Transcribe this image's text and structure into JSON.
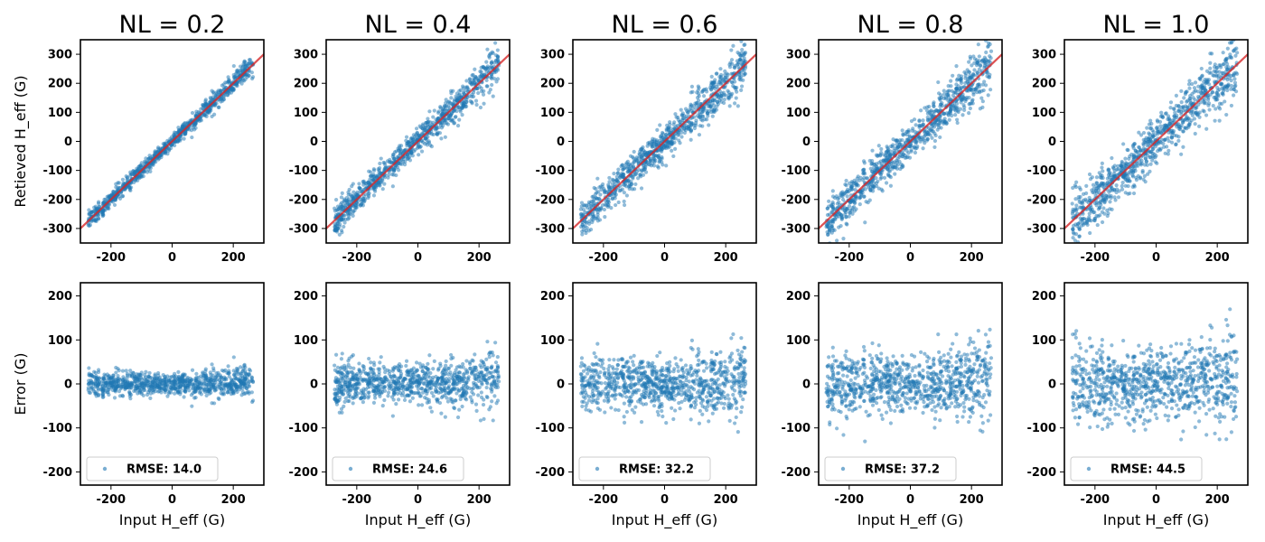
{
  "figure": {
    "accent_colors": {
      "points": "#1f77b4",
      "fit_line": "#d62728"
    }
  },
  "chart_data": [
    {
      "type": "scatter",
      "row": "retrieved",
      "title": "NL = 0.2",
      "xlabel": "",
      "ylabel": "Retieved H_eff (G)",
      "xlim": [
        -300,
        300
      ],
      "ylim": [
        -350,
        350
      ],
      "xticks": [
        -200,
        0,
        200
      ],
      "yticks": [
        -300,
        -200,
        -100,
        0,
        100,
        200,
        300
      ],
      "x_range": [
        -275,
        265
      ],
      "noise_sd": 14.0,
      "seed": 11,
      "n_points": 900,
      "reference_line": {
        "from": [
          -300,
          -300
        ],
        "to": [
          300,
          300
        ]
      }
    },
    {
      "type": "scatter",
      "row": "retrieved",
      "title": "NL = 0.4",
      "xlabel": "",
      "ylabel": "",
      "xlim": [
        -300,
        300
      ],
      "ylim": [
        -350,
        350
      ],
      "xticks": [
        -200,
        0,
        200
      ],
      "yticks": [
        -300,
        -200,
        -100,
        0,
        100,
        200,
        300
      ],
      "x_range": [
        -275,
        265
      ],
      "noise_sd": 24.6,
      "seed": 23,
      "n_points": 900,
      "reference_line": {
        "from": [
          -300,
          -300
        ],
        "to": [
          300,
          300
        ]
      }
    },
    {
      "type": "scatter",
      "row": "retrieved",
      "title": "NL = 0.6",
      "xlabel": "",
      "ylabel": "",
      "xlim": [
        -300,
        300
      ],
      "ylim": [
        -350,
        350
      ],
      "xticks": [
        -200,
        0,
        200
      ],
      "yticks": [
        -300,
        -200,
        -100,
        0,
        100,
        200,
        300
      ],
      "x_range": [
        -275,
        265
      ],
      "noise_sd": 32.2,
      "seed": 37,
      "n_points": 900,
      "reference_line": {
        "from": [
          -300,
          -300
        ],
        "to": [
          300,
          300
        ]
      }
    },
    {
      "type": "scatter",
      "row": "retrieved",
      "title": "NL = 0.8",
      "xlabel": "",
      "ylabel": "",
      "xlim": [
        -300,
        300
      ],
      "ylim": [
        -350,
        350
      ],
      "xticks": [
        -200,
        0,
        200
      ],
      "yticks": [
        -300,
        -200,
        -100,
        0,
        100,
        200,
        300
      ],
      "x_range": [
        -275,
        265
      ],
      "noise_sd": 37.2,
      "seed": 41,
      "n_points": 900,
      "reference_line": {
        "from": [
          -300,
          -300
        ],
        "to": [
          300,
          300
        ]
      }
    },
    {
      "type": "scatter",
      "row": "retrieved",
      "title": "NL = 1.0",
      "xlabel": "",
      "ylabel": "",
      "xlim": [
        -300,
        300
      ],
      "ylim": [
        -350,
        350
      ],
      "xticks": [
        -200,
        0,
        200
      ],
      "yticks": [
        -300,
        -200,
        -100,
        0,
        100,
        200,
        300
      ],
      "x_range": [
        -275,
        265
      ],
      "noise_sd": 44.5,
      "seed": 53,
      "n_points": 900,
      "reference_line": {
        "from": [
          -300,
          -300
        ],
        "to": [
          300,
          300
        ]
      }
    },
    {
      "type": "scatter",
      "row": "error",
      "title": "",
      "xlabel": "Input  H_eff (G)",
      "ylabel": "Error (G)",
      "xlim": [
        -300,
        300
      ],
      "ylim": [
        -230,
        230
      ],
      "xticks": [
        -200,
        0,
        200
      ],
      "yticks": [
        -200,
        -100,
        0,
        100,
        200
      ],
      "x_range": [
        -275,
        265
      ],
      "noise_sd": 14.0,
      "seed": 11,
      "n_points": 900,
      "legend": {
        "label": "RMSE: 14.0",
        "placement": "lower-left"
      }
    },
    {
      "type": "scatter",
      "row": "error",
      "title": "",
      "xlabel": "Input  H_eff (G)",
      "ylabel": "",
      "xlim": [
        -300,
        300
      ],
      "ylim": [
        -230,
        230
      ],
      "xticks": [
        -200,
        0,
        200
      ],
      "yticks": [
        -200,
        -100,
        0,
        100,
        200
      ],
      "x_range": [
        -275,
        265
      ],
      "noise_sd": 24.6,
      "seed": 23,
      "n_points": 900,
      "legend": {
        "label": "RMSE: 24.6",
        "placement": "lower-left"
      }
    },
    {
      "type": "scatter",
      "row": "error",
      "title": "",
      "xlabel": "Input  H_eff (G)",
      "ylabel": "",
      "xlim": [
        -300,
        300
      ],
      "ylim": [
        -230,
        230
      ],
      "xticks": [
        -200,
        0,
        200
      ],
      "yticks": [
        -200,
        -100,
        0,
        100,
        200
      ],
      "x_range": [
        -275,
        265
      ],
      "noise_sd": 32.2,
      "seed": 37,
      "n_points": 900,
      "legend": {
        "label": "RMSE: 32.2",
        "placement": "lower-left"
      }
    },
    {
      "type": "scatter",
      "row": "error",
      "title": "",
      "xlabel": "Input  H_eff (G)",
      "ylabel": "",
      "xlim": [
        -300,
        300
      ],
      "ylim": [
        -230,
        230
      ],
      "xticks": [
        -200,
        0,
        200
      ],
      "yticks": [
        -200,
        -100,
        0,
        100,
        200
      ],
      "x_range": [
        -275,
        265
      ],
      "noise_sd": 37.2,
      "seed": 41,
      "n_points": 900,
      "legend": {
        "label": "RMSE: 37.2",
        "placement": "lower-left"
      }
    },
    {
      "type": "scatter",
      "row": "error",
      "title": "",
      "xlabel": "Input  H_eff (G)",
      "ylabel": "",
      "xlim": [
        -300,
        300
      ],
      "ylim": [
        -230,
        230
      ],
      "xticks": [
        -200,
        0,
        200
      ],
      "yticks": [
        -200,
        -100,
        0,
        100,
        200
      ],
      "x_range": [
        -275,
        265
      ],
      "noise_sd": 44.5,
      "seed": 53,
      "n_points": 900,
      "legend": {
        "label": "RMSE: 44.5",
        "placement": "lower-left"
      }
    }
  ]
}
